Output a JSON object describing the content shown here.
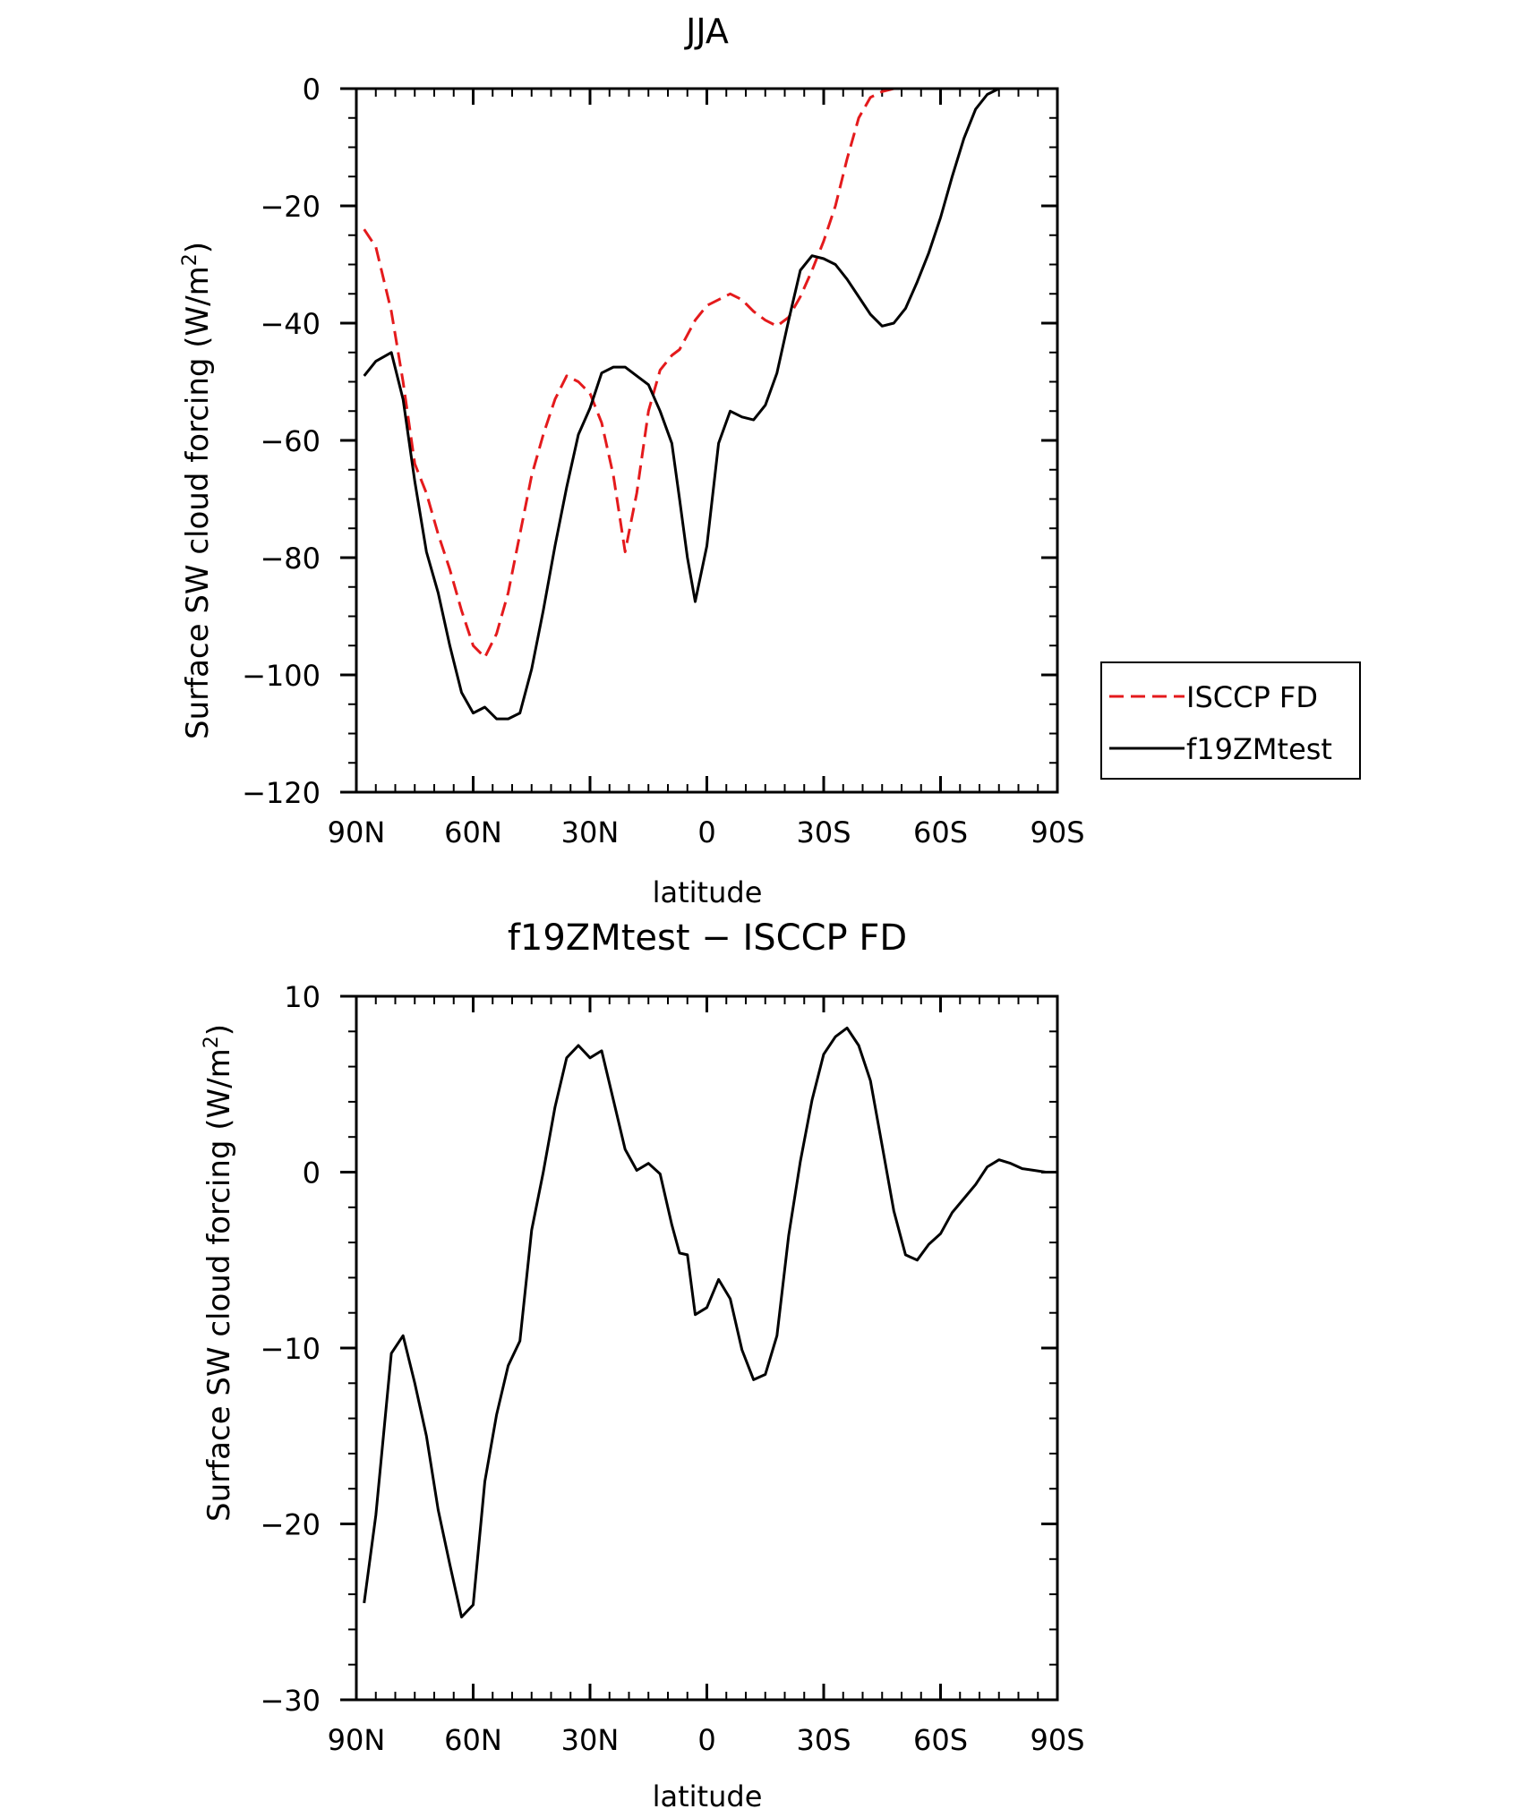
{
  "chart_data": [
    {
      "type": "line",
      "title": "JJA",
      "xlabel": "latitude",
      "ylabel": "Surface SW cloud forcing (W/m",
      "ylabel_sup": "2",
      "ylabel_close": ")",
      "xlim": [
        90,
        -90
      ],
      "ylim": [
        -120,
        0
      ],
      "x_ticks": [
        90,
        60,
        30,
        0,
        -30,
        -60,
        -90
      ],
      "x_tick_labels": [
        "90N",
        "60N",
        "30N",
        "0",
        "30S",
        "60S",
        "90S"
      ],
      "y_ticks": [
        0,
        -20,
        -40,
        -60,
        -80,
        -100,
        -120
      ],
      "y_tick_labels": [
        "0",
        "−20",
        "−40",
        "−60",
        "−80",
        "−100",
        "−120"
      ],
      "grid": false,
      "legend": "right",
      "series": [
        {
          "name": "ISCCP FD",
          "color": "#e41a1c",
          "dash": "dashed",
          "x": [
            88,
            85,
            81,
            78,
            75,
            72,
            69,
            66,
            63,
            60,
            57,
            54,
            51,
            48,
            45,
            42,
            39,
            36,
            33,
            30,
            27,
            24,
            21,
            18,
            15,
            12,
            9,
            7,
            5,
            3,
            0,
            -3,
            -6,
            -9,
            -12,
            -15,
            -18,
            -21,
            -24,
            -27,
            -30,
            -33,
            -36,
            -39,
            -42,
            -45,
            -48,
            -51,
            -54,
            -57,
            -60,
            -63,
            -66,
            -69,
            -72,
            -75,
            -78,
            -81,
            -84,
            -87,
            -89
          ],
          "y": [
            -24,
            -27,
            -38,
            -50,
            -64,
            -69,
            -76,
            -82,
            -89,
            -95,
            -97,
            -93,
            -86,
            -76,
            -66,
            -59,
            -53,
            -49,
            -50,
            -52,
            -57,
            -66,
            -79,
            -69,
            -55,
            -48,
            -45.5,
            -44.5,
            -42,
            -39.5,
            -37,
            -36,
            -35,
            -36,
            -38,
            -39.5,
            -40.5,
            -39,
            -35.5,
            -31,
            -26,
            -20,
            -12,
            -5,
            -1.5,
            -0.5,
            0,
            0,
            0,
            0,
            0,
            0,
            0,
            0,
            0,
            0,
            0,
            0,
            0,
            0,
            0
          ]
        },
        {
          "name": "f19ZMtest",
          "color": "#000000",
          "dash": "solid",
          "x": [
            88,
            85,
            81,
            78,
            75,
            72,
            69,
            66,
            63,
            60,
            57,
            54,
            51,
            48,
            45,
            42,
            39,
            36,
            33,
            30,
            27,
            24,
            21,
            18,
            15,
            12,
            9,
            7,
            5,
            3,
            0,
            -3,
            -6,
            -9,
            -12,
            -15,
            -18,
            -21,
            -24,
            -27,
            -30,
            -33,
            -36,
            -39,
            -42,
            -45,
            -48,
            -51,
            -54,
            -57,
            -60,
            -63,
            -66,
            -69,
            -72,
            -75,
            -78,
            -81,
            -84,
            -87,
            -89
          ],
          "y": [
            -49,
            -46.5,
            -45,
            -53,
            -67,
            -79,
            -86,
            -95,
            -103,
            -106.5,
            -105.5,
            -107.5,
            -107.5,
            -106.5,
            -99,
            -89,
            -78,
            -68,
            -59,
            -54.5,
            -48.5,
            -47.5,
            -47.5,
            -49,
            -50.5,
            -55,
            -60.5,
            -70,
            -80,
            -87.5,
            -78,
            -60.5,
            -55,
            -56,
            -56.5,
            -54,
            -48.5,
            -39.5,
            -31,
            -28.5,
            -29,
            -30,
            -32.5,
            -35.5,
            -38.5,
            -40.5,
            -40,
            -37.5,
            -33,
            -28,
            -22,
            -15,
            -8.5,
            -3.5,
            -1,
            0,
            0,
            0,
            0,
            0,
            0
          ]
        }
      ]
    },
    {
      "type": "line",
      "title": "f19ZMtest − ISCCP FD",
      "xlabel": "latitude",
      "ylabel": "Surface SW cloud forcing (W/m",
      "ylabel_sup": "2",
      "ylabel_close": ")",
      "xlim": [
        90,
        -90
      ],
      "ylim": [
        -30,
        10
      ],
      "x_ticks": [
        90,
        60,
        30,
        0,
        -30,
        -60,
        -90
      ],
      "x_tick_labels": [
        "90N",
        "60N",
        "30N",
        "0",
        "30S",
        "60S",
        "90S"
      ],
      "y_ticks": [
        10,
        0,
        -10,
        -20,
        -30
      ],
      "y_tick_labels": [
        "10",
        "0",
        "−10",
        "−20",
        "−30"
      ],
      "grid": false,
      "series": [
        {
          "color": "#000000",
          "dash": "solid",
          "x": [
            88,
            85,
            81,
            78,
            75,
            72,
            69,
            66,
            63,
            60,
            57,
            54,
            51,
            48,
            45,
            42,
            39,
            36,
            33,
            30,
            27,
            24,
            21,
            18,
            15,
            12,
            9,
            7,
            5,
            3,
            0,
            -3,
            -6,
            -9,
            -12,
            -15,
            -18,
            -21,
            -24,
            -27,
            -30,
            -33,
            -36,
            -39,
            -42,
            -45,
            -48,
            -51,
            -54,
            -57,
            -60,
            -63,
            -66,
            -69,
            -72,
            -75,
            -78,
            -81,
            -84,
            -87,
            -89
          ],
          "y": [
            -24.5,
            -19.5,
            -10.3,
            -9.3,
            -12,
            -15,
            -19.2,
            -22.3,
            -25.3,
            -24.6,
            -17.6,
            -13.8,
            -11,
            -9.6,
            -3.3,
            0,
            3.7,
            6.5,
            7.2,
            6.5,
            6.9,
            4.1,
            1.3,
            0.1,
            0.5,
            -0.1,
            -3,
            -4.6,
            -4.7,
            -8.1,
            -7.7,
            -6.1,
            -7.2,
            -10.1,
            -11.8,
            -11.5,
            -9.3,
            -3.6,
            0.6,
            4.1,
            6.7,
            7.7,
            8.2,
            7.2,
            5.2,
            1.5,
            -2.2,
            -4.7,
            -5,
            -4.1,
            -3.5,
            -2.3,
            -1.5,
            -0.7,
            0.3,
            0.7,
            0.5,
            0.2,
            0.1,
            0,
            0
          ]
        }
      ]
    }
  ]
}
